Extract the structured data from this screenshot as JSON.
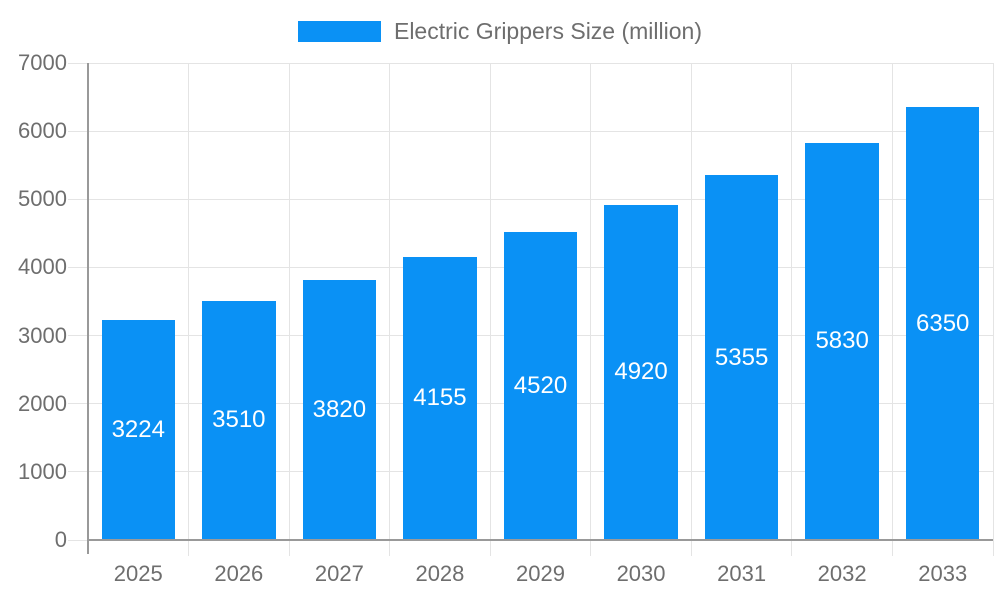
{
  "chart_data": {
    "type": "bar",
    "title": "Electric Grippers Size (million)",
    "categories": [
      "2025",
      "2026",
      "2027",
      "2028",
      "2029",
      "2030",
      "2031",
      "2032",
      "2033"
    ],
    "series": [
      {
        "name": "Electric Grippers Size (million)",
        "values": [
          3224,
          3510,
          3820,
          4155,
          4520,
          4920,
          5355,
          5830,
          6350
        ]
      }
    ],
    "xlabel": "",
    "ylabel": "",
    "ylim": [
      0,
      7000
    ],
    "y_ticks": [
      0,
      1000,
      2000,
      3000,
      4000,
      5000,
      6000,
      7000
    ],
    "grid": true,
    "legend_position": "top-center",
    "bar_labels_inside": true,
    "bar_width_fraction": 0.73,
    "colors": {
      "bar": "#0a91f5",
      "bar_label_text": "#ffffff",
      "axis_text": "#6e6e6e",
      "legend_text": "#6e6e6e",
      "grid_line": "#e4e4e4",
      "axis_line": "#999999"
    }
  }
}
